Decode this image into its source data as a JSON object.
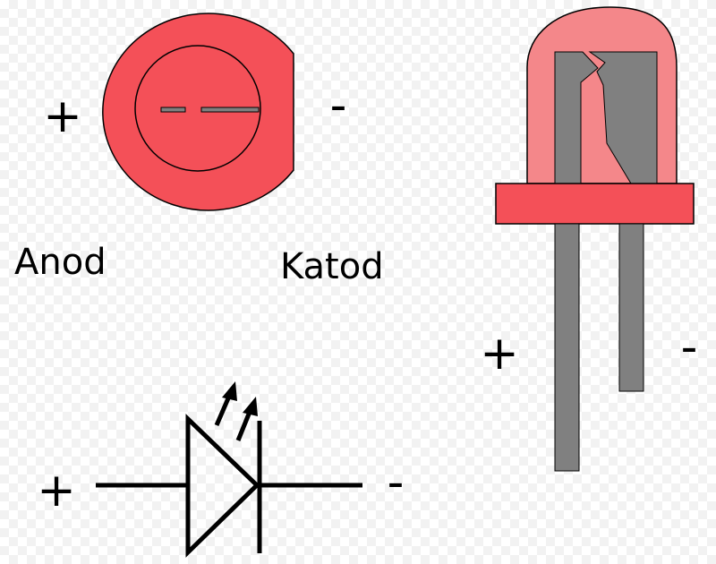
{
  "labels": {
    "anode": "Anod",
    "cathode": "Katod"
  },
  "signs": {
    "plus": "+",
    "minus": "-"
  },
  "colors": {
    "led_body": "#f45058",
    "led_dome": "#f4878a",
    "lead_gray": "#808080",
    "outline": "#000000"
  }
}
